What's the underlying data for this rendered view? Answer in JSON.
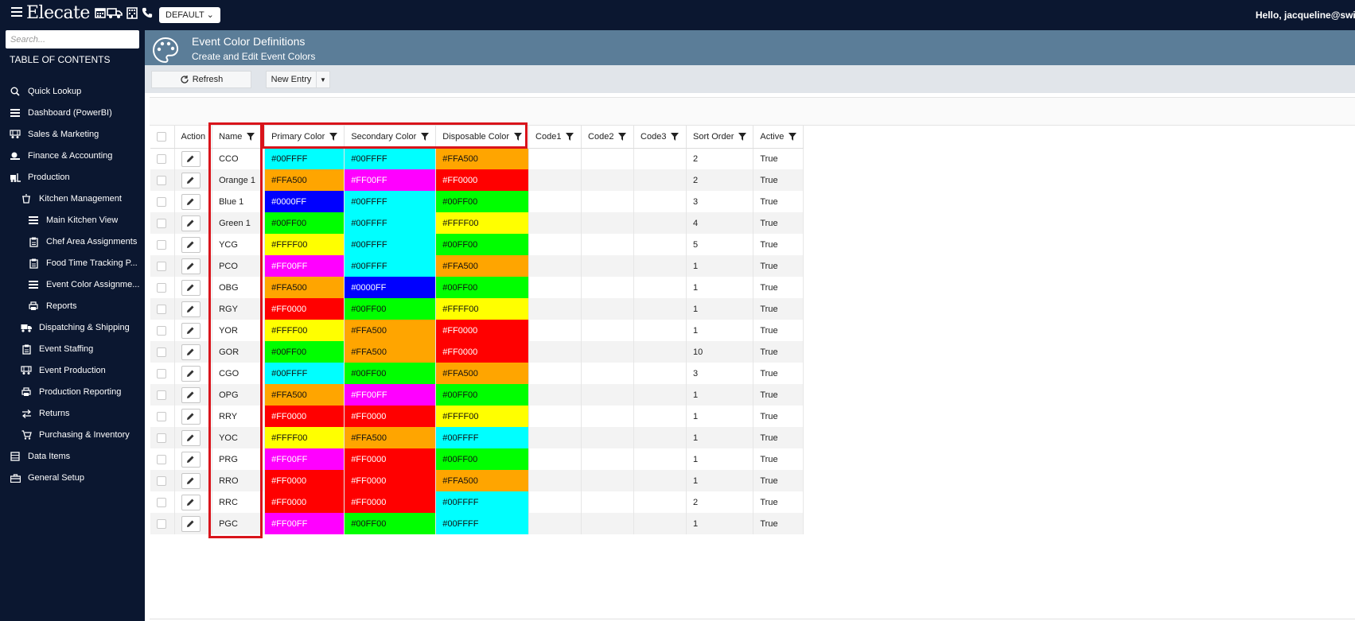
{
  "app": {
    "logo": "Elecate",
    "environment": "DEFAULT",
    "greeting": "Hello, jacqueline@swiftc"
  },
  "topbar_icons": [
    "calendar-icon",
    "truck-icon",
    "building-icon",
    "phone-icon"
  ],
  "sidebar": {
    "search_placeholder": "Search...",
    "toc_label": "TABLE OF CONTENTS",
    "items": [
      {
        "label": "Quick Lookup",
        "icon": "search-icon"
      },
      {
        "label": "Dashboard (PowerBI)",
        "icon": "list-icon"
      },
      {
        "label": "Sales & Marketing",
        "icon": "people-icon"
      },
      {
        "label": "Finance & Accounting",
        "icon": "money-icon"
      },
      {
        "label": "Production",
        "icon": "forklift-icon"
      },
      {
        "label": "Kitchen Management",
        "icon": "pot-icon"
      },
      {
        "label": "Main Kitchen View",
        "icon": "list-icon"
      },
      {
        "label": "Chef Area Assignments",
        "icon": "clipboard-icon"
      },
      {
        "label": "Food Time Tracking P...",
        "icon": "clipboard-icon"
      },
      {
        "label": "Event Color Assignme...",
        "icon": "list-icon"
      },
      {
        "label": "Reports",
        "icon": "printer-icon"
      },
      {
        "label": "Dispatching & Shipping",
        "icon": "truck-icon"
      },
      {
        "label": "Event Staffing",
        "icon": "clipboard-icon"
      },
      {
        "label": "Event Production",
        "icon": "people-icon"
      },
      {
        "label": "Production Reporting",
        "icon": "printer-icon"
      },
      {
        "label": "Returns",
        "icon": "exchange-icon"
      },
      {
        "label": "Purchasing & Inventory",
        "icon": "cart-icon"
      },
      {
        "label": "Data Items",
        "icon": "database-icon"
      },
      {
        "label": "General Setup",
        "icon": "briefcase-icon"
      }
    ]
  },
  "header": {
    "title": "Event Color Definitions",
    "subtitle": "Create and Edit Event Colors"
  },
  "toolbar": {
    "refresh_label": "Refresh",
    "new_entry_label": "New Entry"
  },
  "grid": {
    "columns": [
      "Action",
      "Name",
      "Primary Color",
      "Secondary Color",
      "Disposable Color",
      "Code1",
      "Code2",
      "Code3",
      "Sort Order",
      "Active"
    ],
    "rows": [
      {
        "name": "CCO",
        "primary": "#00FFFF",
        "secondary": "#00FFFF",
        "disposable": "#FFA500",
        "code1": "",
        "code2": "",
        "code3": "",
        "sort": "2",
        "active": "True"
      },
      {
        "name": "Orange 1",
        "primary": "#FFA500",
        "secondary": "#FF00FF",
        "disposable": "#FF0000",
        "code1": "",
        "code2": "",
        "code3": "",
        "sort": "2",
        "active": "True"
      },
      {
        "name": "Blue 1",
        "primary": "#0000FF",
        "secondary": "#00FFFF",
        "disposable": "#00FF00",
        "code1": "",
        "code2": "",
        "code3": "",
        "sort": "3",
        "active": "True"
      },
      {
        "name": "Green 1",
        "primary": "#00FF00",
        "secondary": "#00FFFF",
        "disposable": "#FFFF00",
        "code1": "",
        "code2": "",
        "code3": "",
        "sort": "4",
        "active": "True"
      },
      {
        "name": "YCG",
        "primary": "#FFFF00",
        "secondary": "#00FFFF",
        "disposable": "#00FF00",
        "code1": "",
        "code2": "",
        "code3": "",
        "sort": "5",
        "active": "True"
      },
      {
        "name": "PCO",
        "primary": "#FF00FF",
        "secondary": "#00FFFF",
        "disposable": "#FFA500",
        "code1": "",
        "code2": "",
        "code3": "",
        "sort": "1",
        "active": "True"
      },
      {
        "name": "OBG",
        "primary": "#FFA500",
        "secondary": "#0000FF",
        "disposable": "#00FF00",
        "code1": "",
        "code2": "",
        "code3": "",
        "sort": "1",
        "active": "True"
      },
      {
        "name": "RGY",
        "primary": "#FF0000",
        "secondary": "#00FF00",
        "disposable": "#FFFF00",
        "code1": "",
        "code2": "",
        "code3": "",
        "sort": "1",
        "active": "True"
      },
      {
        "name": "YOR",
        "primary": "#FFFF00",
        "secondary": "#FFA500",
        "disposable": "#FF0000",
        "code1": "",
        "code2": "",
        "code3": "",
        "sort": "1",
        "active": "True"
      },
      {
        "name": "GOR",
        "primary": "#00FF00",
        "secondary": "#FFA500",
        "disposable": "#FF0000",
        "code1": "",
        "code2": "",
        "code3": "",
        "sort": "10",
        "active": "True"
      },
      {
        "name": "CGO",
        "primary": "#00FFFF",
        "secondary": "#00FF00",
        "disposable": "#FFA500",
        "code1": "",
        "code2": "",
        "code3": "",
        "sort": "3",
        "active": "True"
      },
      {
        "name": "OPG",
        "primary": "#FFA500",
        "secondary": "#FF00FF",
        "disposable": "#00FF00",
        "code1": "",
        "code2": "",
        "code3": "",
        "sort": "1",
        "active": "True"
      },
      {
        "name": "RRY",
        "primary": "#FF0000",
        "secondary": "#FF0000",
        "disposable": "#FFFF00",
        "code1": "",
        "code2": "",
        "code3": "",
        "sort": "1",
        "active": "True"
      },
      {
        "name": "YOC",
        "primary": "#FFFF00",
        "secondary": "#FFA500",
        "disposable": "#00FFFF",
        "code1": "",
        "code2": "",
        "code3": "",
        "sort": "1",
        "active": "True"
      },
      {
        "name": "PRG",
        "primary": "#FF00FF",
        "secondary": "#FF0000",
        "disposable": "#00FF00",
        "code1": "",
        "code2": "",
        "code3": "",
        "sort": "1",
        "active": "True"
      },
      {
        "name": "RRO",
        "primary": "#FF0000",
        "secondary": "#FF0000",
        "disposable": "#FFA500",
        "code1": "",
        "code2": "",
        "code3": "",
        "sort": "1",
        "active": "True"
      },
      {
        "name": "RRC",
        "primary": "#FF0000",
        "secondary": "#FF0000",
        "disposable": "#00FFFF",
        "code1": "",
        "code2": "",
        "code3": "",
        "sort": "2",
        "active": "True"
      },
      {
        "name": "PGC",
        "primary": "#FF00FF",
        "secondary": "#00FF00",
        "disposable": "#00FFFF",
        "code1": "",
        "code2": "",
        "code3": "",
        "sort": "1",
        "active": "True"
      }
    ]
  },
  "colors": {
    "nav_bg": "#0b1730",
    "header_bg": "#5b7d98",
    "toolbar_bg": "#e1e5ea",
    "highlight": "#d9141b"
  }
}
